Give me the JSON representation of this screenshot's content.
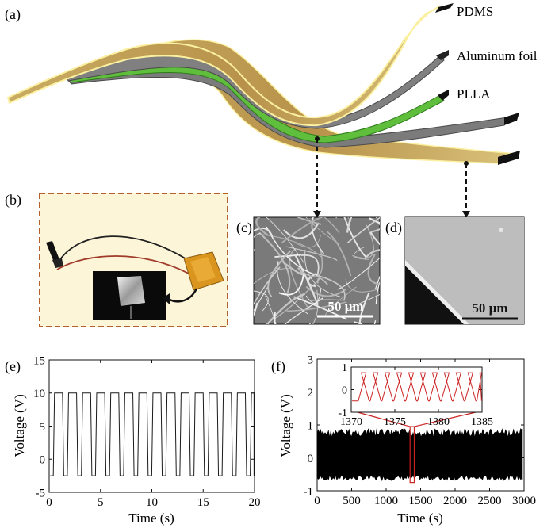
{
  "panel_labels": {
    "a": "(a)",
    "b": "(b)",
    "c": "(c)",
    "d": "(d)",
    "e": "(e)",
    "f": "(f)"
  },
  "layers": {
    "pdms": "PDMS",
    "aluminum": "Aluminum foil",
    "plla": "PLLA"
  },
  "scale_bars": {
    "c": "50 µm",
    "d": "50 µm"
  },
  "colors": {
    "pdms": "#d4bd72",
    "pdms_edge": "#fbf0a0",
    "aluminum": "#7b7b7b",
    "plla": "#5fbe3c",
    "photo_border": "#b4622a",
    "photo_bg": "#fdf5d8",
    "signal": "#1a1a1a",
    "inset_signal": "#cc2222"
  },
  "chart_data": [
    {
      "id": "e",
      "type": "line",
      "title": "",
      "xlabel": "Time (s)",
      "ylabel": "Voltage (V)",
      "xlim": [
        0,
        20
      ],
      "ylim": [
        -5,
        15
      ],
      "xticks": [
        0,
        5,
        10,
        15,
        20
      ],
      "yticks": [
        -5,
        0,
        5,
        10,
        15
      ],
      "series": [
        {
          "name": "voltage",
          "period_s": 1.37,
          "high_V": 10,
          "low_V": -2.5,
          "first_rise_s": 0.4,
          "high_duration_s": 0.9
        }
      ]
    },
    {
      "id": "f",
      "type": "line",
      "title": "",
      "xlabel": "Time (s)",
      "ylabel": "Voltage (V)",
      "xlim": [
        0,
        3000
      ],
      "ylim": [
        -1,
        3
      ],
      "xticks": [
        0,
        500,
        1000,
        1500,
        2000,
        2500,
        3000
      ],
      "yticks": [
        -1,
        0,
        1,
        2,
        3
      ],
      "series": [
        {
          "name": "voltage",
          "x_start_s": 0,
          "x_end_s": 2980,
          "envelope_V": [
            -0.7,
            0.9
          ]
        }
      ],
      "highlight": {
        "x_range_s": [
          1370,
          1385
        ]
      },
      "inset": {
        "xlim": [
          1370,
          1385
        ],
        "ylim": [
          -1,
          1
        ],
        "xticks": [
          1370,
          1375,
          1380,
          1385
        ],
        "yticks": [
          -1,
          0,
          1
        ],
        "series": [
          {
            "name": "voltage",
            "period_s": 1.36,
            "high_V": 0.75,
            "low_V": -0.5
          }
        ]
      }
    }
  ]
}
